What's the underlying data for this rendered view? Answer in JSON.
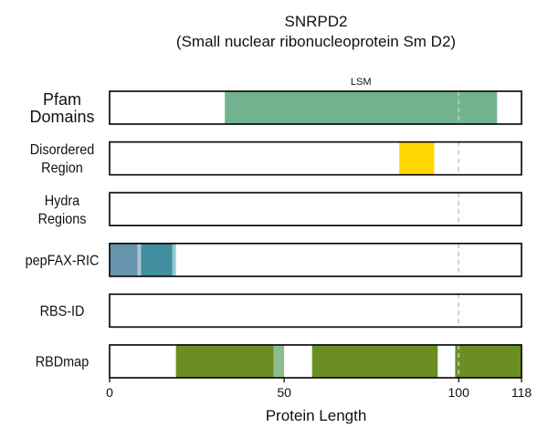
{
  "chart_data": {
    "type": "track",
    "title": "SNRPD2",
    "subtitle": "(Small nuclear ribonucleoprotein Sm D2)",
    "xlabel": "Protein Length",
    "xlim": [
      0,
      118
    ],
    "xticks": [
      0,
      50,
      100,
      118
    ],
    "reference_line": 100,
    "tracks": [
      {
        "label": [
          "Pfam",
          "Domains"
        ],
        "large": true,
        "segments": [
          {
            "start": 33,
            "end": 111,
            "color": "#72b38f",
            "label": "LSM"
          }
        ]
      },
      {
        "label": [
          "Disordered",
          "Region"
        ],
        "segments": [
          {
            "start": 83,
            "end": 93,
            "color": "#ffd700"
          }
        ]
      },
      {
        "label": [
          "Hydra",
          "Regions"
        ],
        "segments": []
      },
      {
        "label": [
          "pepFAX-RIC"
        ],
        "segments": [
          {
            "start": 0,
            "end": 8,
            "color": "#6794ac"
          },
          {
            "start": 8,
            "end": 9,
            "color": "#a9c6d3"
          },
          {
            "start": 9,
            "end": 18,
            "color": "#418ea0"
          },
          {
            "start": 18,
            "end": 19,
            "color": "#8fc9d1"
          }
        ]
      },
      {
        "label": [
          "RBS-ID"
        ],
        "segments": []
      },
      {
        "label": [
          "RBDmap"
        ],
        "segments": [
          {
            "start": 19,
            "end": 47,
            "color": "#6b8e23"
          },
          {
            "start": 47,
            "end": 50,
            "color": "#8fbc8f"
          },
          {
            "start": 58,
            "end": 94,
            "color": "#6b8e23"
          },
          {
            "start": 99,
            "end": 118,
            "color": "#6b8e23"
          }
        ]
      }
    ]
  }
}
